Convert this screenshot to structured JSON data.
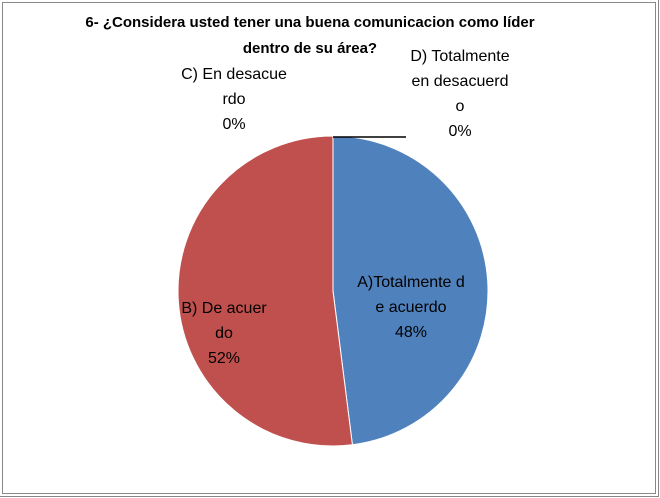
{
  "chart_data": {
    "type": "pie",
    "title": "6- ¿Considera usted tener una buena comunicacion como líder dentro de su área?",
    "categories": [
      "A)Totalmente de acuerdo",
      "B) De acuerdo",
      "C) En desacuerdo",
      "D) Totalmente en desacuerdo"
    ],
    "values": [
      48,
      52,
      0,
      0
    ],
    "value_labels": [
      "48%",
      "52%",
      "0%",
      "0%"
    ],
    "colors": [
      "#4f81bd",
      "#c0504d",
      "#9bbb59",
      "#8064a2"
    ]
  }
}
